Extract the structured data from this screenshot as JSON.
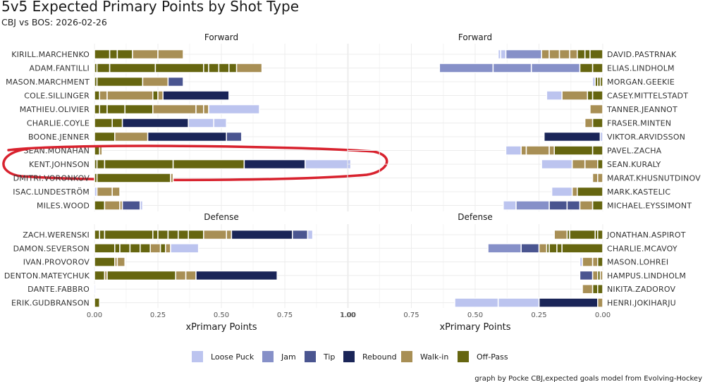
{
  "title": "5v5 Expected Primary Points by Shot Type",
  "subtitle": "CBJ vs BOS: 2026-02-26",
  "caption": "graph by Pocke CBJ,expected goals model from Evolving-Hockey",
  "xlabel": "xPrimary Points",
  "colors": {
    "Loose Puck": "#bcc4ef",
    "Jam": "#8690c8",
    "Tip": "#4a5590",
    "Rebound": "#1a2558",
    "Walk-in": "#a88f55",
    "Off-Pass": "#666610",
    "annotation": "#d8222e"
  },
  "legend": [
    "Loose Puck",
    "Jam",
    "Tip",
    "Rebound",
    "Walk-in",
    "Off-Pass"
  ],
  "chart_data": {
    "type": "bar",
    "orientation": "horizontal-stacked",
    "annotation": "red circle around KENT.JOHNSON",
    "panels": [
      {
        "id": "cbj-forward",
        "facet": "Forward",
        "side": "left",
        "xlim": [
          0,
          1.0
        ],
        "ticks": [
          "0.00",
          "0.25",
          "0.50",
          "0.75",
          "1.00"
        ],
        "players": [
          {
            "name": "KIRILL.MARCHENKO",
            "shots": [
              [
                "Off-Pass",
                0.06
              ],
              [
                "Off-Pass",
                0.03
              ],
              [
                "Off-Pass",
                0.06
              ],
              [
                "Walk-in",
                0.1
              ],
              [
                "Walk-in",
                0.1
              ]
            ]
          },
          {
            "name": "ADAM.FANTILLI",
            "shots": [
              [
                "Off-Pass",
                0.01
              ],
              [
                "Off-Pass",
                0.05
              ],
              [
                "Off-Pass",
                0.18
              ],
              [
                "Off-Pass",
                0.19
              ],
              [
                "Off-Pass",
                0.02
              ],
              [
                "Off-Pass",
                0.04
              ],
              [
                "Off-Pass",
                0.04
              ],
              [
                "Off-Pass",
                0.03
              ],
              [
                "Walk-in",
                0.1
              ]
            ]
          },
          {
            "name": "MASON.MARCHMENT",
            "shots": [
              [
                "Off-Pass",
                0.01
              ],
              [
                "Off-Pass",
                0.18
              ],
              [
                "Walk-in",
                0.1
              ],
              [
                "Tip",
                0.06
              ]
            ]
          },
          {
            "name": "COLE.SILLINGER",
            "shots": [
              [
                "Off-Pass",
                0.02
              ],
              [
                "Walk-in",
                0.03
              ],
              [
                "Walk-in",
                0.18
              ],
              [
                "Off-Pass",
                0.02
              ],
              [
                "Walk-in",
                0.02
              ],
              [
                "Rebound",
                0.26
              ]
            ]
          },
          {
            "name": "MATHIEU.OLIVIER",
            "shots": [
              [
                "Off-Pass",
                0.02
              ],
              [
                "Off-Pass",
                0.03
              ],
              [
                "Off-Pass",
                0.07
              ],
              [
                "Off-Pass",
                0.11
              ],
              [
                "Walk-in",
                0.17
              ],
              [
                "Walk-in",
                0.03
              ],
              [
                "Walk-in",
                0.02
              ],
              [
                "Loose Puck",
                0.2
              ]
            ]
          },
          {
            "name": "CHARLIE.COYLE",
            "shots": [
              [
                "Off-Pass",
                0.07
              ],
              [
                "Off-Pass",
                0.04
              ],
              [
                "Rebound",
                0.26
              ],
              [
                "Loose Puck",
                0.1
              ],
              [
                "Loose Puck",
                0.05
              ]
            ]
          },
          {
            "name": "BOONE.JENNER",
            "shots": [
              [
                "Off-Pass",
                0.08
              ],
              [
                "Walk-in",
                0.13
              ],
              [
                "Rebound",
                0.31
              ],
              [
                "Tip",
                0.06
              ]
            ]
          },
          {
            "name": "SEAN.MONAHAN",
            "shots": [
              [
                "Off-Pass",
                0.02
              ],
              [
                "Walk-in",
                0.01
              ]
            ]
          },
          {
            "name": "KENT.JOHNSON",
            "shots": [
              [
                "Off-Pass",
                0.01
              ],
              [
                "Off-Pass",
                0.03
              ],
              [
                "Off-Pass",
                0.27
              ],
              [
                "Off-Pass",
                0.28
              ],
              [
                "Rebound",
                0.24
              ],
              [
                "Loose Puck",
                0.18
              ]
            ]
          },
          {
            "name": "DMITRI.VORONKOV",
            "shots": [
              [
                "Off-Pass",
                0.01
              ],
              [
                "Off-Pass",
                0.29
              ],
              [
                "Walk-in",
                0.01
              ]
            ]
          },
          {
            "name": "ISAC.LUNDESTRÖM",
            "shots": [
              [
                "Loose Puck",
                0.01
              ],
              [
                "Walk-in",
                0.06
              ],
              [
                "Walk-in",
                0.03
              ]
            ]
          },
          {
            "name": "MILES.WOOD",
            "shots": [
              [
                "Off-Pass",
                0.04
              ],
              [
                "Walk-in",
                0.06
              ],
              [
                "Walk-in",
                0.01
              ],
              [
                "Tip",
                0.07
              ],
              [
                "Loose Puck",
                0.01
              ]
            ]
          }
        ]
      },
      {
        "id": "bos-forward",
        "facet": "Forward",
        "side": "right",
        "xlim": [
          0,
          1.0
        ],
        "ticks": [
          "1.00",
          "0.75",
          "0.50",
          "0.25",
          "0.00"
        ],
        "players": [
          {
            "name": "DAVID.PASTRNAK",
            "shots": [
              [
                "Off-Pass",
                0.05
              ],
              [
                "Off-Pass",
                0.02
              ],
              [
                "Off-Pass",
                0.03
              ],
              [
                "Walk-in",
                0.03
              ],
              [
                "Walk-in",
                0.04
              ],
              [
                "Walk-in",
                0.04
              ],
              [
                "Walk-in",
                0.03
              ],
              [
                "Jam",
                0.14
              ],
              [
                "Loose Puck",
                0.02
              ],
              [
                "Loose Puck",
                0.01
              ]
            ]
          },
          {
            "name": "ELIAS.LINDHOLM",
            "shots": [
              [
                "Off-Pass",
                0.04
              ],
              [
                "Off-Pass",
                0.05
              ],
              [
                "Jam",
                0.19
              ],
              [
                "Jam",
                0.15
              ],
              [
                "Jam",
                0.21
              ]
            ]
          },
          {
            "name": "MORGAN.GEEKIE",
            "shots": [
              [
                "Off-Pass",
                0.01
              ],
              [
                "Off-Pass",
                0.01
              ],
              [
                "Off-Pass",
                0.01
              ],
              [
                "Loose Puck",
                0.01
              ]
            ]
          },
          {
            "name": "CASEY.MITTELSTADT",
            "shots": [
              [
                "Off-Pass",
                0.04
              ],
              [
                "Off-Pass",
                0.02
              ],
              [
                "Walk-in",
                0.1
              ],
              [
                "Loose Puck",
                0.06
              ]
            ]
          },
          {
            "name": "TANNER.JEANNOT",
            "shots": [
              [
                "Walk-in",
                0.05
              ]
            ]
          },
          {
            "name": "FRASER.MINTEN",
            "shots": [
              [
                "Off-Pass",
                0.04
              ],
              [
                "Walk-in",
                0.03
              ]
            ]
          },
          {
            "name": "VIKTOR.ARVIDSSON",
            "shots": [
              [
                "Loose Puck",
                0.01
              ],
              [
                "Rebound",
                0.22
              ]
            ]
          },
          {
            "name": "PAVEL.ZACHA",
            "shots": [
              [
                "Off-Pass",
                0.04
              ],
              [
                "Off-Pass",
                0.15
              ],
              [
                "Walk-in",
                0.02
              ],
              [
                "Walk-in",
                0.09
              ],
              [
                "Walk-in",
                0.02
              ],
              [
                "Loose Puck",
                0.06
              ]
            ]
          },
          {
            "name": "SEAN.KURALY",
            "shots": [
              [
                "Off-Pass",
                0.02
              ],
              [
                "Walk-in",
                0.05
              ],
              [
                "Walk-in",
                0.05
              ],
              [
                "Loose Puck",
                0.12
              ]
            ]
          },
          {
            "name": "MARAT.KHUSNUTDINOV",
            "shots": [
              [
                "Walk-in",
                0.02
              ],
              [
                "Walk-in",
                0.02
              ]
            ]
          },
          {
            "name": "MARK.KASTELIC",
            "shots": [
              [
                "Off-Pass",
                0.1
              ],
              [
                "Walk-in",
                0.02
              ],
              [
                "Loose Puck",
                0.08
              ]
            ]
          },
          {
            "name": "MICHAEL.EYSSIMONT",
            "shots": [
              [
                "Off-Pass",
                0.04
              ],
              [
                "Walk-in",
                0.05
              ],
              [
                "Tip",
                0.05
              ],
              [
                "Tip",
                0.07
              ],
              [
                "Jam",
                0.13
              ],
              [
                "Loose Puck",
                0.05
              ]
            ]
          }
        ]
      },
      {
        "id": "cbj-defense",
        "facet": "Defense",
        "side": "left",
        "xlim": [
          0,
          1.0
        ],
        "ticks": [
          "0.00",
          "0.25",
          "0.50",
          "0.75",
          "1.00"
        ],
        "players": [
          {
            "name": "ZACH.WERENSKI",
            "shots": [
              [
                "Off-Pass",
                0.02
              ],
              [
                "Off-Pass",
                0.02
              ],
              [
                "Off-Pass",
                0.19
              ],
              [
                "Off-Pass",
                0.02
              ],
              [
                "Off-Pass",
                0.04
              ],
              [
                "Off-Pass",
                0.04
              ],
              [
                "Off-Pass",
                0.04
              ],
              [
                "Off-Pass",
                0.06
              ],
              [
                "Walk-in",
                0.09
              ],
              [
                "Walk-in",
                0.02
              ],
              [
                "Rebound",
                0.24
              ],
              [
                "Tip",
                0.06
              ],
              [
                "Loose Puck",
                0.02
              ]
            ]
          },
          {
            "name": "DAMON.SEVERSON",
            "shots": [
              [
                "Off-Pass",
                0.08
              ],
              [
                "Off-Pass",
                0.02
              ],
              [
                "Off-Pass",
                0.04
              ],
              [
                "Off-Pass",
                0.04
              ],
              [
                "Off-Pass",
                0.04
              ],
              [
                "Walk-in",
                0.04
              ],
              [
                "Off-Pass",
                0.02
              ],
              [
                "Walk-in",
                0.02
              ],
              [
                "Loose Puck",
                0.11
              ]
            ]
          },
          {
            "name": "IVAN.PROVOROV",
            "shots": [
              [
                "Off-Pass",
                0.08
              ],
              [
                "Walk-in",
                0.01
              ],
              [
                "Walk-in",
                0.03
              ]
            ]
          },
          {
            "name": "DENTON.MATEYCHUK",
            "shots": [
              [
                "Off-Pass",
                0.04
              ],
              [
                "Walk-in",
                0.01
              ],
              [
                "Off-Pass",
                0.27
              ],
              [
                "Walk-in",
                0.04
              ],
              [
                "Walk-in",
                0.04
              ],
              [
                "Rebound",
                0.32
              ]
            ]
          },
          {
            "name": "DANTE.FABBRO",
            "shots": [
              [
                "Loose Puck",
                0.005
              ]
            ]
          },
          {
            "name": "ERIK.GUDBRANSON",
            "shots": [
              [
                "Off-Pass",
                0.02
              ]
            ]
          }
        ]
      },
      {
        "id": "bos-defense",
        "facet": "Defense",
        "side": "right",
        "xlim": [
          0,
          1.0
        ],
        "ticks": [
          "1.00",
          "0.75",
          "0.50",
          "0.25",
          "0.00"
        ],
        "players": [
          {
            "name": "JONATHAN.ASPIROT",
            "shots": [
              [
                "Off-Pass",
                0.02
              ],
              [
                "Off-Pass",
                0.01
              ],
              [
                "Off-Pass",
                0.1
              ],
              [
                "Off-Pass",
                0.01
              ],
              [
                "Walk-in",
                0.05
              ]
            ]
          },
          {
            "name": "CHARLIE.MCAVOY",
            "shots": [
              [
                "Off-Pass",
                0.16
              ],
              [
                "Off-Pass",
                0.02
              ],
              [
                "Off-Pass",
                0.03
              ],
              [
                "Off-Pass",
                0.01
              ],
              [
                "Walk-in",
                0.03
              ],
              [
                "Tip",
                0.07
              ],
              [
                "Jam",
                0.13
              ]
            ]
          },
          {
            "name": "MASON.LOHREI",
            "shots": [
              [
                "Off-Pass",
                0.02
              ],
              [
                "Walk-in",
                0.02
              ],
              [
                "Walk-in",
                0.04
              ],
              [
                "Loose Puck",
                0.01
              ]
            ]
          },
          {
            "name": "HAMPUS.LINDHOLM",
            "shots": [
              [
                "Walk-in",
                0.01
              ],
              [
                "Off-Pass",
                0.01
              ],
              [
                "Walk-in",
                0.02
              ],
              [
                "Tip",
                0.05
              ]
            ]
          },
          {
            "name": "NIKITA.ZADOROV",
            "shots": [
              [
                "Off-Pass",
                0.02
              ],
              [
                "Off-Pass",
                0.02
              ],
              [
                "Walk-in",
                0.04
              ]
            ]
          },
          {
            "name": "HENRI.JOKIHARJU",
            "shots": [
              [
                "Walk-in",
                0.02
              ],
              [
                "Rebound",
                0.23
              ],
              [
                "Loose Puck",
                0.16
              ],
              [
                "Loose Puck",
                0.17
              ]
            ]
          }
        ]
      }
    ]
  }
}
